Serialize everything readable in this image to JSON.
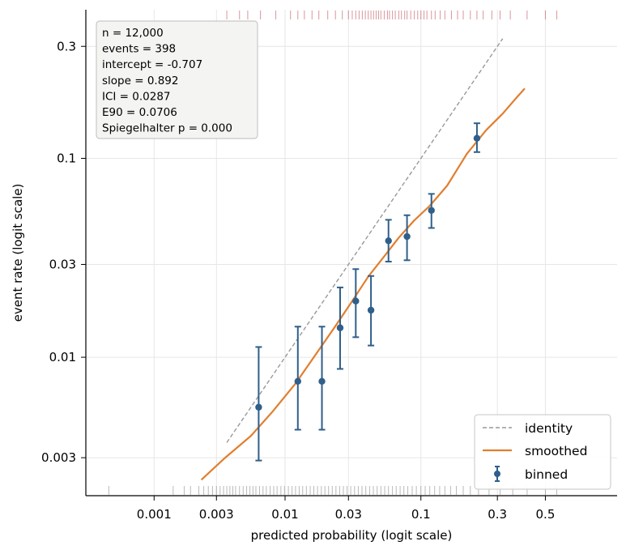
{
  "chart_data": {
    "type": "scatter",
    "xlabel": "predicted probability (logit scale)",
    "ylabel": "event rate (logit scale)",
    "x_scale": "logit",
    "y_scale": "logit",
    "xlim": [
      0.0003,
      0.78
    ],
    "ylim": [
      0.0019,
      0.4
    ],
    "x_ticks": [
      {
        "value": 0.001,
        "label": "0.001"
      },
      {
        "value": 0.003,
        "label": "0.003"
      },
      {
        "value": 0.01,
        "label": "0.01"
      },
      {
        "value": 0.03,
        "label": "0.03"
      },
      {
        "value": 0.1,
        "label": "0.1"
      },
      {
        "value": 0.3,
        "label": "0.3"
      },
      {
        "value": 0.5,
        "label": "0.5"
      }
    ],
    "y_ticks": [
      {
        "value": 0.003,
        "label": "0.003"
      },
      {
        "value": 0.01,
        "label": "0.01"
      },
      {
        "value": 0.03,
        "label": "0.03"
      },
      {
        "value": 0.1,
        "label": "0.1"
      },
      {
        "value": 0.3,
        "label": "0.3"
      }
    ],
    "grid": true,
    "legend_position": "bottom-right",
    "stats_box": [
      "n = 12,000",
      "events = 398",
      "intercept = -0.707",
      "slope = 0.892",
      "ICI = 0.0287",
      "E90 = 0.0706",
      "Spiegelhalter p = 0.000"
    ],
    "series": [
      {
        "name": "identity",
        "kind": "line",
        "style": "dashed",
        "color": "#999999",
        "x": [
          0.0036,
          0.32
        ],
        "y": [
          0.0036,
          0.32
        ]
      },
      {
        "name": "smoothed",
        "kind": "line",
        "style": "solid",
        "color": "#e07f2f",
        "x": [
          0.0023,
          0.0035,
          0.0055,
          0.008,
          0.012,
          0.017,
          0.024,
          0.032,
          0.042,
          0.055,
          0.07,
          0.09,
          0.115,
          0.15,
          0.2,
          0.26,
          0.32,
          0.38,
          0.41
        ],
        "y": [
          0.0023,
          0.003,
          0.0039,
          0.0052,
          0.0073,
          0.0103,
          0.0145,
          0.0195,
          0.026,
          0.033,
          0.041,
          0.05,
          0.059,
          0.074,
          0.105,
          0.135,
          0.16,
          0.19,
          0.205
        ]
      },
      {
        "name": "binned",
        "kind": "errorbar",
        "color": "#2f5f8a",
        "x": [
          0.0063,
          0.0125,
          0.019,
          0.026,
          0.034,
          0.044,
          0.059,
          0.08,
          0.118,
          0.23
        ],
        "y": [
          0.0055,
          0.0075,
          0.0075,
          0.0142,
          0.0195,
          0.0175,
          0.0395,
          0.0415,
          0.056,
          0.124
        ],
        "y_low": [
          0.0029,
          0.0042,
          0.0042,
          0.0087,
          0.0127,
          0.0115,
          0.031,
          0.0315,
          0.0458,
          0.107
        ],
        "y_high": [
          0.0113,
          0.0144,
          0.0144,
          0.0229,
          0.0284,
          0.0262,
          0.0503,
          0.053,
          0.0675,
          0.145
        ]
      }
    ],
    "rug_top": {
      "color": "#c0505a",
      "x": [
        0.0036,
        0.0045,
        0.0052,
        0.0065,
        0.0085,
        0.011,
        0.0125,
        0.014,
        0.016,
        0.018,
        0.021,
        0.024,
        0.027,
        0.03,
        0.032,
        0.034,
        0.036,
        0.038,
        0.04,
        0.042,
        0.044,
        0.046,
        0.048,
        0.05,
        0.052,
        0.055,
        0.058,
        0.06,
        0.063,
        0.066,
        0.07,
        0.073,
        0.077,
        0.08,
        0.085,
        0.09,
        0.095,
        0.1,
        0.105,
        0.11,
        0.118,
        0.125,
        0.135,
        0.145,
        0.16,
        0.175,
        0.19,
        0.21,
        0.23,
        0.25,
        0.28,
        0.31,
        0.35,
        0.42,
        0.5,
        0.55
      ]
    },
    "rug_bottom": {
      "color": "#666666",
      "x": [
        0.00045,
        0.0014,
        0.0017,
        0.0019,
        0.0022,
        0.0024,
        0.0026,
        0.0028,
        0.003,
        0.0032,
        0.0034,
        0.0036,
        0.0038,
        0.004,
        0.0042,
        0.0045,
        0.0048,
        0.0051,
        0.0054,
        0.0057,
        0.006,
        0.0064,
        0.0068,
        0.0072,
        0.0077,
        0.0082,
        0.0087,
        0.0093,
        0.0099,
        0.0106,
        0.0113,
        0.012,
        0.0128,
        0.0136,
        0.0145,
        0.0155,
        0.0165,
        0.0176,
        0.0188,
        0.02,
        0.0213,
        0.0227,
        0.0242,
        0.0258,
        0.0275,
        0.0293,
        0.0312,
        0.0333,
        0.0355,
        0.0378,
        0.0403,
        0.043,
        0.0458,
        0.0488,
        0.052,
        0.0554,
        0.059,
        0.063,
        0.067,
        0.0715,
        0.076,
        0.081,
        0.087,
        0.093,
        0.1,
        0.107,
        0.115,
        0.124,
        0.134,
        0.145,
        0.158,
        0.172,
        0.19,
        0.21,
        0.235,
        0.27,
        0.31,
        0.36,
        0.42,
        0.5,
        0.55
      ]
    }
  }
}
